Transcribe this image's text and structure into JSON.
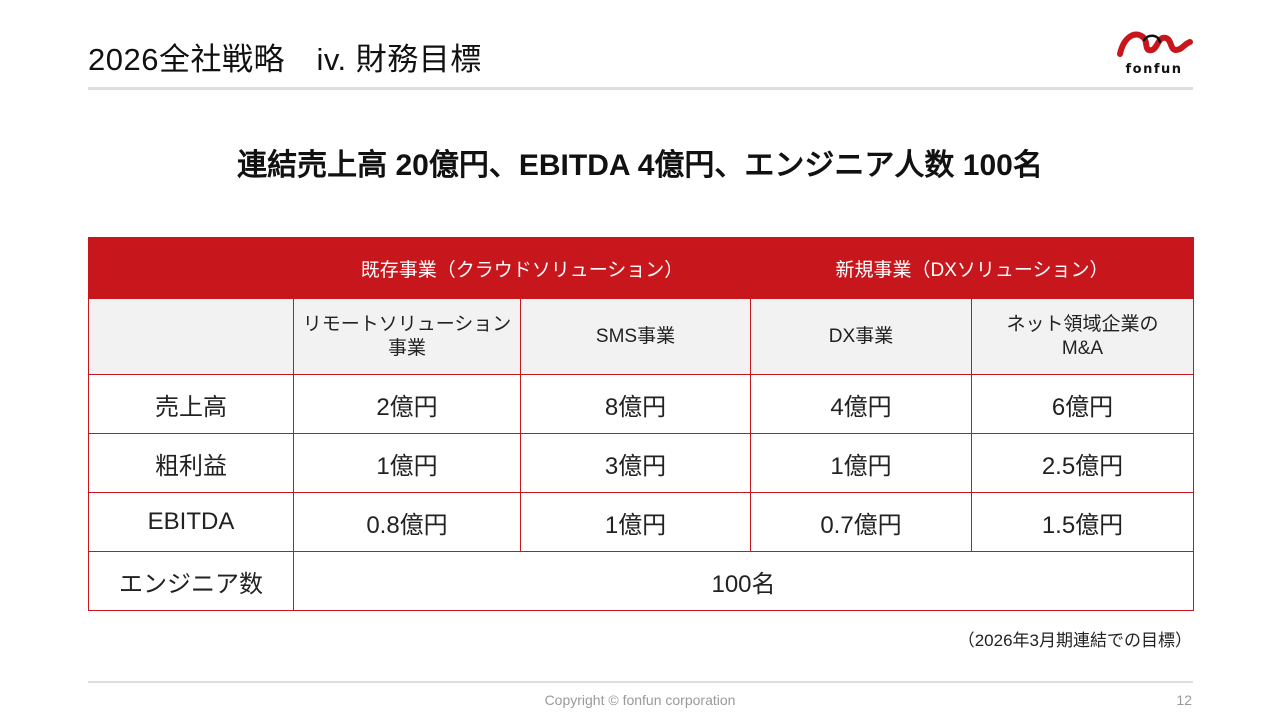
{
  "header": {
    "title": "2026全社戦略　iv. 財務目標",
    "logo_text": "fonfun"
  },
  "headline": "連結売上高 20億円、EBITDA 4億円、エンジニア人数 100名",
  "table": {
    "group_headers": [
      "既存事業（クラウドソリューション）",
      "新規事業（DXソリューション）"
    ],
    "sub_headers": [
      [
        "リモートソリューション",
        "事業"
      ],
      [
        "SMS事業"
      ],
      [
        "DX事業"
      ],
      [
        "ネット領域企業の",
        "M&A"
      ]
    ],
    "rows": [
      {
        "label": "売上高",
        "values": [
          "2億円",
          "8億円",
          "4億円",
          "6億円"
        ]
      },
      {
        "label": "粗利益",
        "values": [
          "1億円",
          "3億円",
          "1億円",
          "2.5億円"
        ]
      },
      {
        "label": "EBITDA",
        "values": [
          "0.8億円",
          "1億円",
          "0.7億円",
          "1.5億円"
        ]
      }
    ],
    "engineer_row": {
      "label": "エンジニア数",
      "value": "100名"
    }
  },
  "note": "（2026年3月期連結での目標）",
  "footer": {
    "copyright": "Copyright © fonfun corporation",
    "page_number": "12"
  },
  "colors": {
    "brand_red": "#c8161d",
    "subheader_bg": "#f2f2f2",
    "rule_gray": "#dddddd"
  }
}
